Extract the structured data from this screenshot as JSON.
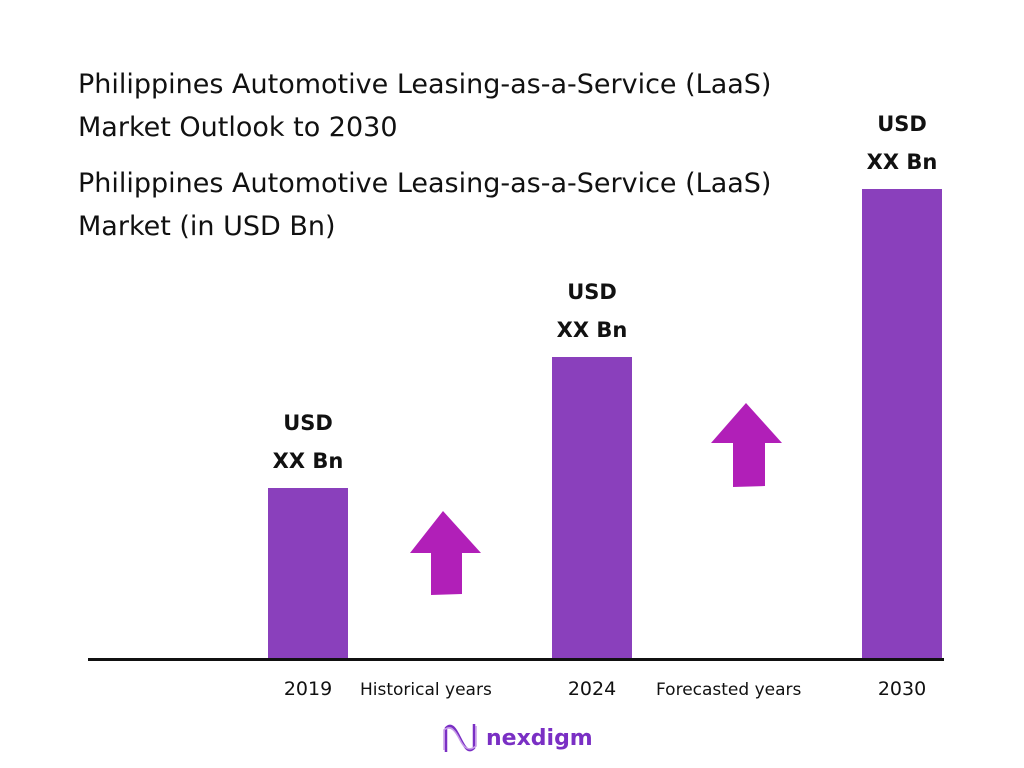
{
  "chart_data": {
    "type": "bar",
    "title": "Philippines Automotive Leasing-as-a-Service (LaaS) Market Outlook to 2030",
    "subtitle": "Philippines Automotive Leasing-as-a-Service (LaaS) Market (in USD Bn)",
    "categories": [
      "2019",
      "2024",
      "2030"
    ],
    "relative_values": [
      1.0,
      1.76,
      2.74
    ],
    "data_labels": [
      {
        "line1": "USD",
        "line2": "XX Bn"
      },
      {
        "line1": "USD",
        "line2": "XX Bn"
      },
      {
        "line1": "USD",
        "line2": "XX Bn"
      }
    ],
    "period_labels": [
      "Historical years",
      "Forecasted years"
    ],
    "xlabel": "",
    "ylabel": "",
    "grid": false,
    "bar_color": "#8a40bc",
    "arrow_color": "#b11fb8"
  },
  "brand": {
    "name": "nexdigm",
    "color": "#7a2fc4"
  }
}
